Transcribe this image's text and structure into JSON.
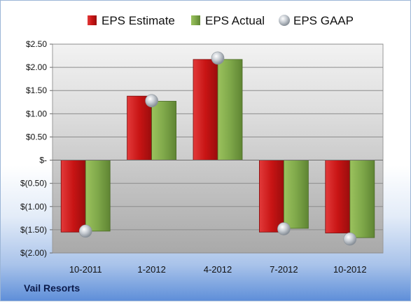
{
  "company": "Vail Resorts",
  "chart_data": {
    "type": "bar",
    "categories": [
      "10-2011",
      "1-2012",
      "4-2012",
      "7-2012",
      "10-2012"
    ],
    "series": [
      {
        "name": "EPS Estimate",
        "kind": "bar",
        "color": "#cc1f1f",
        "values": [
          -1.55,
          1.38,
          2.17,
          -1.55,
          -1.57
        ]
      },
      {
        "name": "EPS Actual",
        "kind": "bar",
        "color": "#7fa84a",
        "values": [
          -1.53,
          1.27,
          2.17,
          -1.47,
          -1.67
        ]
      },
      {
        "name": "EPS GAAP",
        "kind": "marker",
        "color": "#b9c0c8",
        "values": [
          -1.53,
          1.28,
          2.2,
          -1.48,
          -1.7
        ]
      }
    ],
    "y_ticks": [
      "$2.50",
      "$2.00",
      "$1.50",
      "$1.00",
      "$0.50",
      "$-",
      "$(0.50)",
      "$(1.00)",
      "$(1.50)",
      "$(2.00)"
    ],
    "ylim": [
      -2.0,
      2.5
    ],
    "grid": true,
    "legend_position": "top"
  }
}
